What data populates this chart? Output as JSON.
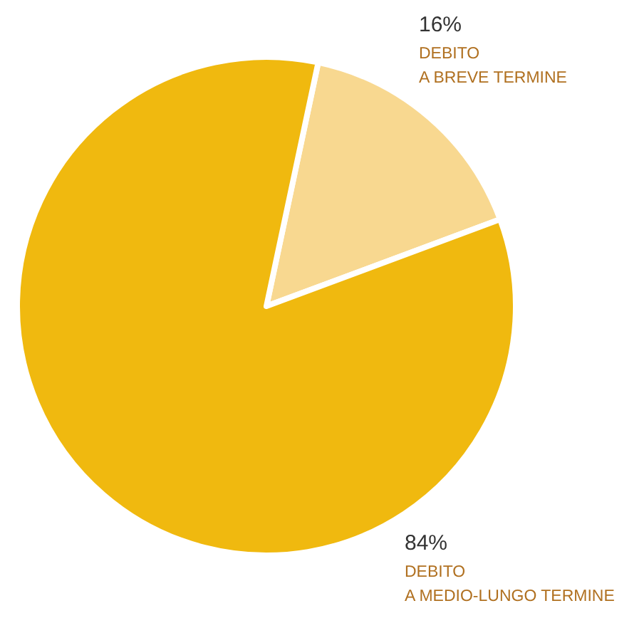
{
  "chart_data": {
    "type": "pie",
    "categories": [
      "DEBITO\nA BREVE TERMINE",
      "DEBITO\nA MEDIO-LUNGO TERMINE"
    ],
    "values": [
      16,
      84
    ],
    "colors": [
      "#f8d890",
      "#f0b90f"
    ],
    "value_labels": [
      "16%",
      "84%"
    ]
  }
}
